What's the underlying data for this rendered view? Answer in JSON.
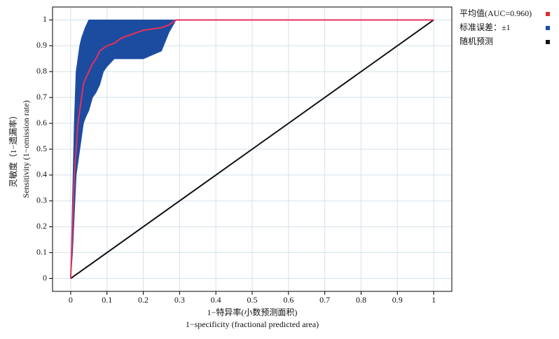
{
  "chart_data": {
    "type": "roc",
    "xlabel": [
      "1−特异率(小数预测面积)",
      "1−specificity (fractional predicted area)"
    ],
    "ylabel": [
      "灵敏度（1−遗漏率）",
      "Sensitivity (1−omission rate)"
    ],
    "xlim": [
      -0.05,
      1.05
    ],
    "ylim": [
      -0.05,
      1.05
    ],
    "xticks": [
      0,
      0.1,
      0.2,
      0.3,
      0.4,
      0.5,
      0.6,
      0.7,
      0.8,
      0.9,
      1.0
    ],
    "yticks": [
      0,
      0.1,
      0.2,
      0.3,
      0.4,
      0.5,
      0.6,
      0.7,
      0.8,
      0.9,
      1.0
    ],
    "grid": true,
    "legend": "right",
    "series": [
      {
        "name": "平均值(AUC=0.960)",
        "color": "#e8305a",
        "legend_color": "#e03030",
        "kind": "line",
        "x": [
          0,
          0.005,
          0.01,
          0.015,
          0.02,
          0.025,
          0.03,
          0.035,
          0.04,
          0.05,
          0.06,
          0.07,
          0.08,
          0.09,
          0.1,
          0.12,
          0.14,
          0.16,
          0.18,
          0.2,
          0.25,
          0.27,
          0.29,
          1.0
        ],
        "values": [
          0,
          0.2,
          0.4,
          0.5,
          0.6,
          0.65,
          0.7,
          0.75,
          0.77,
          0.8,
          0.83,
          0.85,
          0.88,
          0.89,
          0.9,
          0.91,
          0.93,
          0.94,
          0.95,
          0.96,
          0.97,
          0.98,
          1.0,
          1.0
        ]
      },
      {
        "name": "标准误差：±1",
        "color": "#1c4ca0",
        "kind": "band",
        "x": [
          0,
          0.005,
          0.01,
          0.015,
          0.02,
          0.025,
          0.03,
          0.035,
          0.04,
          0.05,
          0.06,
          0.07,
          0.08,
          0.09,
          0.1,
          0.12,
          0.14,
          0.16,
          0.18,
          0.2,
          0.25,
          0.27,
          0.29,
          1.0
        ],
        "upper": [
          0,
          0.3,
          0.6,
          0.8,
          0.85,
          0.9,
          0.93,
          0.95,
          0.97,
          1.0,
          1.0,
          1.0,
          1.0,
          1.0,
          1.0,
          1.0,
          1.0,
          1.0,
          1.0,
          1.0,
          1.0,
          1.0,
          1.0,
          1.0
        ],
        "lower": [
          0,
          0.1,
          0.25,
          0.4,
          0.45,
          0.5,
          0.55,
          0.6,
          0.62,
          0.65,
          0.7,
          0.72,
          0.75,
          0.8,
          0.82,
          0.85,
          0.85,
          0.85,
          0.85,
          0.85,
          0.88,
          0.95,
          1.0,
          1.0
        ]
      },
      {
        "name": "随机预测",
        "color": "#111111",
        "kind": "line",
        "x": [
          0,
          1.0
        ],
        "values": [
          0,
          1.0
        ]
      }
    ]
  }
}
